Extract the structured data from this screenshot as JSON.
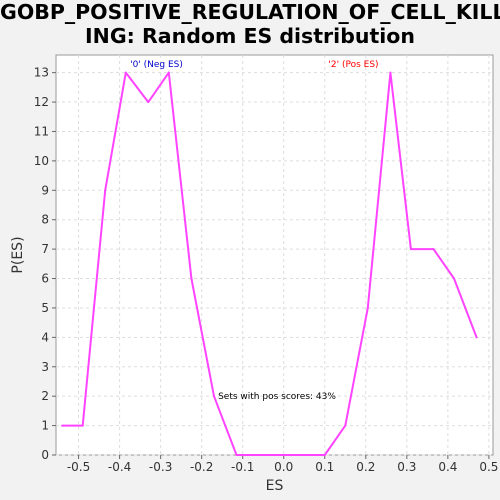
{
  "chart_data": {
    "type": "line",
    "title": "GOBP_POSITIVE_REGULATION_OF_CELL_KILLING: Random ES distribution",
    "title_lines": [
      "GOBP_POSITIVE_REGULATION_OF_CELL_KILL",
      "ING: Random ES distribution"
    ],
    "xlabel": "ES",
    "ylabel": "P(ES)",
    "xlim": [
      -0.555,
      0.51
    ],
    "ylim": [
      0,
      13.6
    ],
    "x_ticks": [
      -0.5,
      -0.4,
      -0.3,
      -0.2,
      -0.1,
      0.0,
      0.1,
      0.2,
      0.3,
      0.4,
      0.5
    ],
    "x_tick_labels": [
      "-0.5",
      "-0.4",
      "-0.3",
      "-0.2",
      "-0.1",
      "0.0",
      "0.1",
      "0.2",
      "0.3",
      "0.4",
      "0.5"
    ],
    "y_ticks": [
      0,
      1,
      2,
      3,
      4,
      5,
      6,
      7,
      8,
      9,
      10,
      11,
      12,
      13
    ],
    "y_tick_labels": [
      "0",
      "1",
      "2",
      "3",
      "4",
      "5",
      "6",
      "7",
      "8",
      "9",
      "10",
      "11",
      "12",
      "13"
    ],
    "grid": true,
    "series": [
      {
        "color": "#ff44ff",
        "x": [
          -0.54,
          -0.49,
          -0.435,
          -0.385,
          -0.33,
          -0.28,
          -0.225,
          -0.17,
          -0.115,
          -0.06,
          -0.005,
          0.045,
          0.1,
          0.15,
          0.205,
          0.26,
          0.31,
          0.365,
          0.415,
          0.47
        ],
        "y": [
          1,
          1,
          9,
          13,
          12,
          13,
          6,
          2,
          0,
          0,
          0,
          0,
          0,
          1,
          5,
          13,
          7,
          7,
          6,
          4
        ]
      }
    ],
    "annotations": {
      "neg_label": {
        "text": "'0' (Neg ES)",
        "color": "#0000cc",
        "x": -0.31
      },
      "pos_label": {
        "text": "'2' (Pos ES)",
        "color": "#ff0000",
        "x": 0.17
      },
      "pos_scores": {
        "text": "Sets with pos scores: 43%",
        "x": -0.16,
        "y": 2
      }
    }
  }
}
